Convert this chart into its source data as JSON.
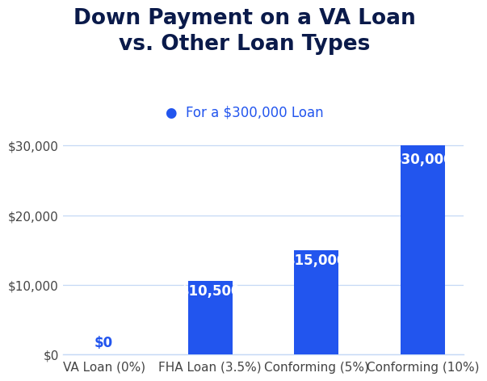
{
  "title": "Down Payment on a VA Loan\nvs. Other Loan Types",
  "subtitle": "●  For a $300,000 Loan",
  "categories": [
    "VA Loan (0%)",
    "FHA Loan (3.5%)",
    "Conforming (5%)",
    "Conforming (10%)"
  ],
  "values": [
    0,
    10500,
    15000,
    30000
  ],
  "bar_labels": [
    "$0",
    "$10,500",
    "$15,000",
    "$30,000"
  ],
  "bar_color": "#2255ee",
  "zero_label_color": "#2255ee",
  "bar_label_color": "#ffffff",
  "title_color": "#0a1a4a",
  "subtitle_color": "#2255ee",
  "tick_label_color": "#444444",
  "grid_color": "#c5d8f5",
  "background_color": "#ffffff",
  "ylim": [
    0,
    33000
  ],
  "yticks": [
    0,
    10000,
    20000,
    30000
  ],
  "ytick_labels": [
    "$0",
    "$10,000",
    "$20,000",
    "$30,000"
  ],
  "title_fontsize": 19,
  "subtitle_fontsize": 12,
  "bar_label_fontsize": 12,
  "axis_label_fontsize": 11,
  "bar_width": 0.42,
  "figsize": [
    6.15,
    4.82
  ],
  "dpi": 100
}
